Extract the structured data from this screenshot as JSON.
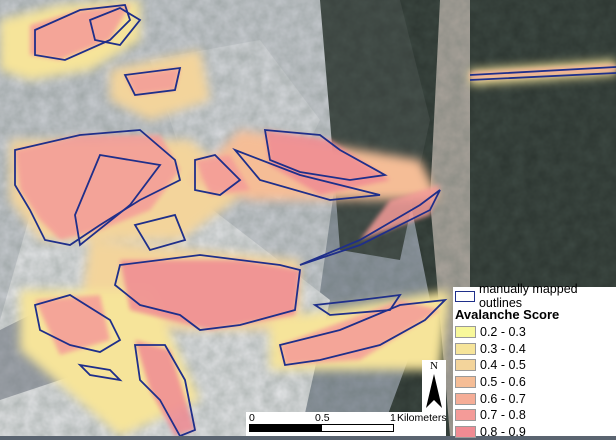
{
  "legend": {
    "outline_label": "manually mapped outlines",
    "outline_color": "#1f2f8a",
    "title": "Avalanche Score",
    "classes": [
      {
        "label": "0.2 - 0.3",
        "color": "#f8f89a"
      },
      {
        "label": "0.3 - 0.4",
        "color": "#f6e49a"
      },
      {
        "label": "0.4 - 0.5",
        "color": "#f3d49b"
      },
      {
        "label": "0.5 - 0.6",
        "color": "#f5bd96"
      },
      {
        "label": "0.6 - 0.7",
        "color": "#f5ad97"
      },
      {
        "label": "0.7 - 0.8",
        "color": "#f49b98"
      },
      {
        "label": "0.8 - 0.9",
        "color": "#f08b93"
      }
    ]
  },
  "scale_bar": {
    "ticks": [
      "0",
      "0.5",
      "1"
    ],
    "unit": "Kilometers"
  },
  "north_arrow": {
    "label": "N"
  }
}
